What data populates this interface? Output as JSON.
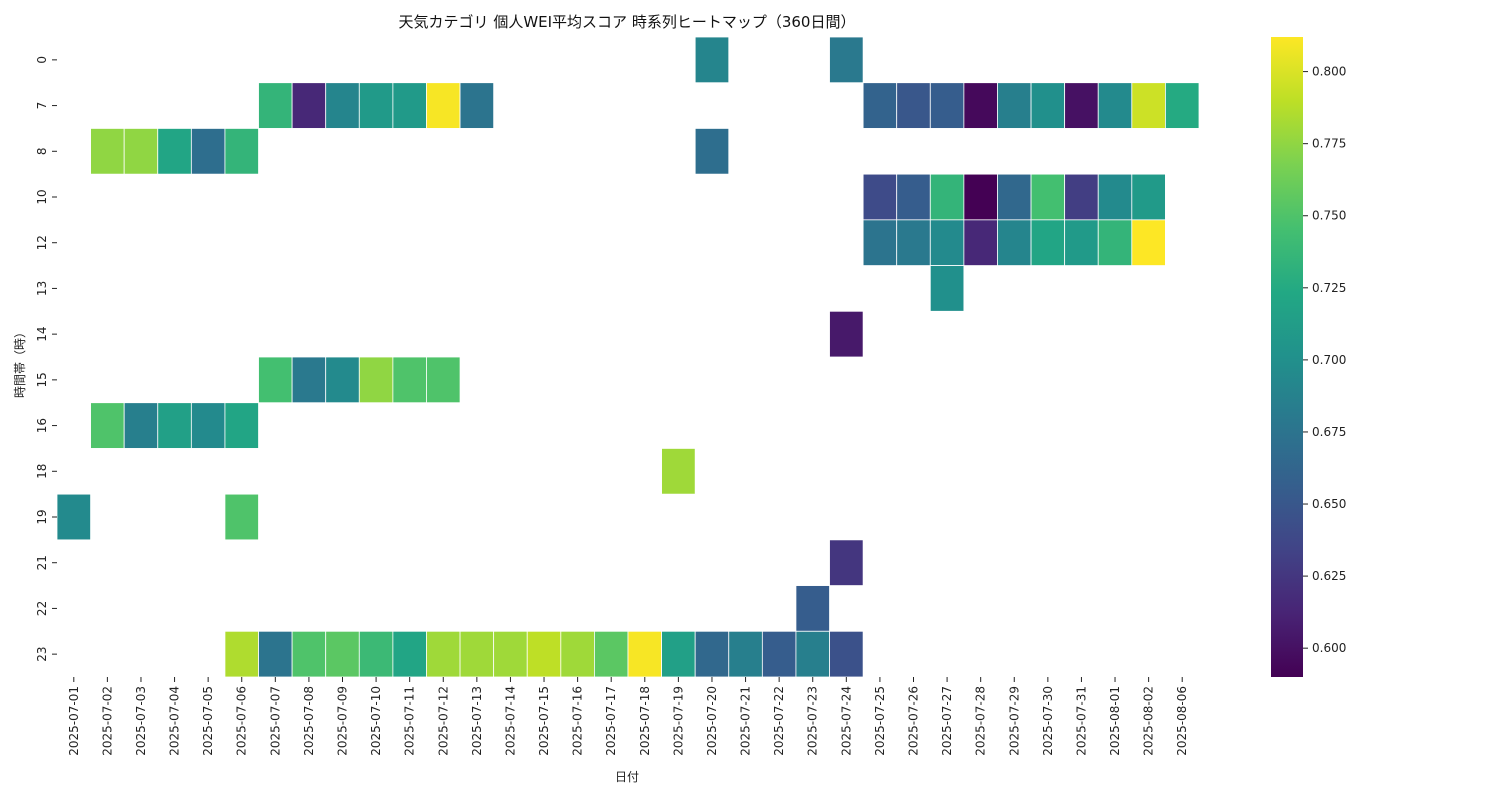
{
  "chart_data": {
    "type": "heatmap",
    "title": "天気カテゴリ 個人WEI平均スコア 時系列ヒートマップ（360日間）",
    "xlabel": "日付",
    "ylabel": "時間帯（時）",
    "x": [
      "2025-07-01",
      "2025-07-02",
      "2025-07-03",
      "2025-07-04",
      "2025-07-05",
      "2025-07-06",
      "2025-07-07",
      "2025-07-08",
      "2025-07-09",
      "2025-07-10",
      "2025-07-11",
      "2025-07-12",
      "2025-07-13",
      "2025-07-14",
      "2025-07-15",
      "2025-07-16",
      "2025-07-17",
      "2025-07-18",
      "2025-07-19",
      "2025-07-20",
      "2025-07-21",
      "2025-07-22",
      "2025-07-23",
      "2025-07-24",
      "2025-07-25",
      "2025-07-26",
      "2025-07-27",
      "2025-07-28",
      "2025-07-29",
      "2025-07-30",
      "2025-07-31",
      "2025-08-01",
      "2025-08-02",
      "2025-08-06"
    ],
    "y": [
      "0",
      "7",
      "8",
      "10",
      "12",
      "13",
      "14",
      "15",
      "16",
      "18",
      "19",
      "21",
      "22",
      "23"
    ],
    "colormap": "viridis",
    "vmin": 0.59,
    "vmax": 0.812,
    "colorbar_ticks": [
      {
        "value": 0.6,
        "label": "0.600"
      },
      {
        "value": 0.625,
        "label": "0.625"
      },
      {
        "value": 0.65,
        "label": "0.650"
      },
      {
        "value": 0.675,
        "label": "0.675"
      },
      {
        "value": 0.7,
        "label": "0.700"
      },
      {
        "value": 0.725,
        "label": "0.725"
      },
      {
        "value": 0.75,
        "label": "0.750"
      },
      {
        "value": 0.775,
        "label": "0.775"
      },
      {
        "value": 0.8,
        "label": "0.800"
      }
    ],
    "values": [
      [
        null,
        null,
        null,
        null,
        null,
        null,
        null,
        null,
        null,
        null,
        null,
        null,
        null,
        null,
        null,
        null,
        null,
        null,
        null,
        0.69,
        null,
        null,
        null,
        0.68,
        null,
        null,
        null,
        null,
        null,
        null,
        null,
        null,
        null,
        null
      ],
      [
        null,
        null,
        null,
        null,
        null,
        null,
        0.735,
        0.615,
        0.69,
        0.71,
        0.71,
        0.81,
        0.675,
        null,
        null,
        null,
        null,
        null,
        null,
        null,
        null,
        null,
        null,
        null,
        0.66,
        0.65,
        0.655,
        0.595,
        0.685,
        0.7,
        0.6,
        0.695,
        0.795,
        0.725
      ],
      [
        null,
        0.775,
        0.775,
        0.72,
        0.67,
        0.735,
        null,
        null,
        null,
        null,
        null,
        null,
        null,
        null,
        null,
        null,
        null,
        null,
        null,
        0.67,
        null,
        null,
        null,
        null,
        null,
        null,
        null,
        null,
        null,
        null,
        null,
        null,
        null,
        null
      ],
      [
        null,
        null,
        null,
        null,
        null,
        null,
        null,
        null,
        null,
        null,
        null,
        null,
        null,
        null,
        null,
        null,
        null,
        null,
        null,
        null,
        null,
        null,
        null,
        null,
        0.64,
        0.655,
        0.735,
        0.59,
        0.665,
        0.745,
        0.63,
        0.695,
        0.71,
        null
      ],
      [
        null,
        null,
        null,
        null,
        null,
        null,
        null,
        null,
        null,
        null,
        null,
        null,
        null,
        null,
        null,
        null,
        null,
        null,
        null,
        null,
        null,
        null,
        null,
        null,
        0.675,
        0.68,
        0.695,
        0.615,
        0.69,
        0.72,
        0.71,
        0.735,
        0.812,
        null
      ],
      [
        null,
        null,
        null,
        null,
        null,
        null,
        null,
        null,
        null,
        null,
        null,
        null,
        null,
        null,
        null,
        null,
        null,
        null,
        null,
        null,
        null,
        null,
        null,
        null,
        null,
        null,
        0.7,
        null,
        null,
        null,
        null,
        null,
        null,
        null
      ],
      [
        null,
        null,
        null,
        null,
        null,
        null,
        null,
        null,
        null,
        null,
        null,
        null,
        null,
        null,
        null,
        null,
        null,
        null,
        null,
        null,
        null,
        null,
        null,
        0.605,
        null,
        null,
        null,
        null,
        null,
        null,
        null,
        null,
        null,
        null
      ],
      [
        null,
        null,
        null,
        null,
        null,
        null,
        0.745,
        0.68,
        0.695,
        0.775,
        0.75,
        0.75,
        null,
        null,
        null,
        null,
        null,
        null,
        null,
        null,
        null,
        null,
        null,
        null,
        null,
        null,
        null,
        null,
        null,
        null,
        null,
        null,
        null,
        null
      ],
      [
        null,
        0.75,
        0.685,
        0.715,
        0.695,
        0.72,
        null,
        null,
        null,
        null,
        null,
        null,
        null,
        null,
        null,
        null,
        null,
        null,
        null,
        null,
        null,
        null,
        null,
        null,
        null,
        null,
        null,
        null,
        null,
        null,
        null,
        null,
        null,
        null
      ],
      [
        null,
        null,
        null,
        null,
        null,
        null,
        null,
        null,
        null,
        null,
        null,
        null,
        null,
        null,
        null,
        null,
        null,
        null,
        0.78,
        null,
        null,
        null,
        null,
        null,
        null,
        null,
        null,
        null,
        null,
        null,
        null,
        null,
        null,
        null
      ],
      [
        0.695,
        null,
        null,
        null,
        null,
        0.75,
        null,
        null,
        null,
        null,
        null,
        null,
        null,
        null,
        null,
        null,
        null,
        null,
        null,
        null,
        null,
        null,
        null,
        null,
        null,
        null,
        null,
        null,
        null,
        null,
        null,
        null,
        null,
        null
      ],
      [
        null,
        null,
        null,
        null,
        null,
        null,
        null,
        null,
        null,
        null,
        null,
        null,
        null,
        null,
        null,
        null,
        null,
        null,
        null,
        null,
        null,
        null,
        null,
        0.625,
        null,
        null,
        null,
        null,
        null,
        null,
        null,
        null,
        null,
        null
      ],
      [
        null,
        null,
        null,
        null,
        null,
        null,
        null,
        null,
        null,
        null,
        null,
        null,
        null,
        null,
        null,
        null,
        null,
        null,
        null,
        null,
        null,
        null,
        0.655,
        null,
        null,
        null,
        null,
        null,
        null,
        null,
        null,
        null,
        null,
        null
      ],
      [
        null,
        null,
        null,
        null,
        null,
        0.785,
        0.675,
        0.75,
        0.755,
        0.74,
        0.72,
        0.78,
        0.78,
        0.78,
        0.79,
        0.78,
        0.755,
        0.81,
        0.715,
        0.665,
        0.685,
        0.655,
        0.685,
        0.645,
        null,
        null,
        null,
        null,
        null,
        null,
        null,
        null,
        null,
        null
      ]
    ]
  }
}
